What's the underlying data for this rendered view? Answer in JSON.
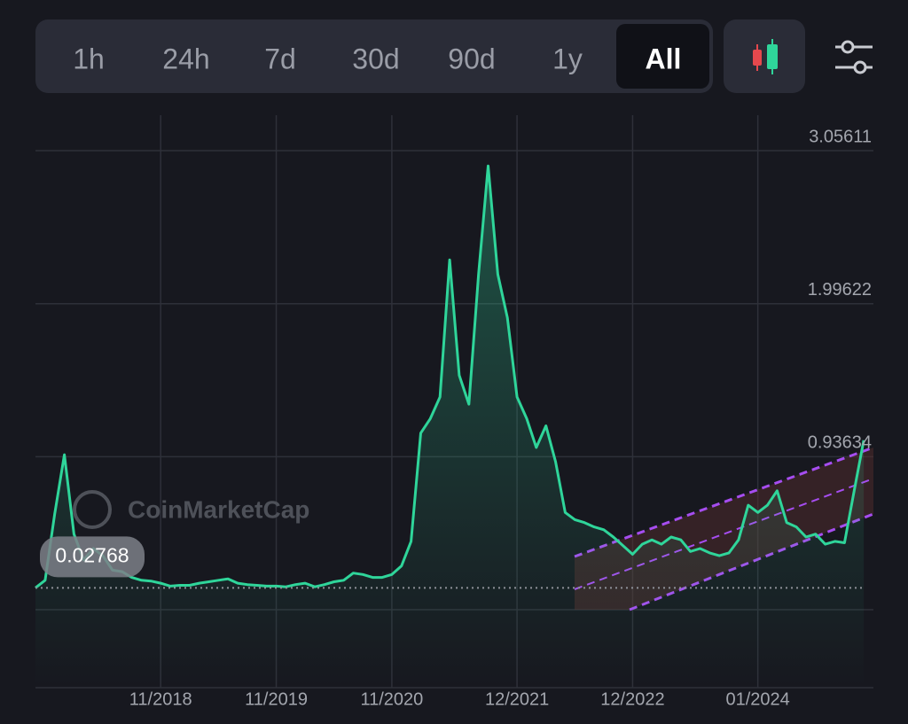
{
  "toolbar": {
    "ranges": [
      "1h",
      "24h",
      "7d",
      "30d",
      "90d",
      "1y",
      "All"
    ],
    "active": 6
  },
  "chart_data": {
    "type": "area-line",
    "watermark": "CoinMarketCap",
    "color": "#2fd59a",
    "x": [
      "2017-10",
      "2017-11",
      "2017-12",
      "2018-01",
      "2018-02",
      "2018-03",
      "2018-04",
      "2018-05",
      "2018-06",
      "2018-07",
      "2018-08",
      "2018-09",
      "2018-10",
      "2018-11",
      "2018-12",
      "2019-01",
      "2019-02",
      "2019-03",
      "2019-04",
      "2019-05",
      "2019-06",
      "2019-07",
      "2019-08",
      "2019-09",
      "2019-10",
      "2019-11",
      "2019-12",
      "2020-01",
      "2020-02",
      "2020-03",
      "2020-04",
      "2020-05",
      "2020-06",
      "2020-07",
      "2020-08",
      "2020-09",
      "2020-10",
      "2020-11",
      "2020-12",
      "2021-01",
      "2021-02",
      "2021-03",
      "2021-04",
      "2021-05",
      "2021-06",
      "2021-07",
      "2021-08",
      "2021-09",
      "2021-10",
      "2021-11",
      "2021-12",
      "2022-01",
      "2022-02",
      "2022-03",
      "2022-04",
      "2022-05",
      "2022-06",
      "2022-07",
      "2022-08",
      "2022-09",
      "2022-10",
      "2022-11",
      "2022-12",
      "2023-01",
      "2023-02",
      "2023-03",
      "2023-04",
      "2023-05",
      "2023-06",
      "2023-07",
      "2023-08",
      "2023-09",
      "2023-10",
      "2023-11",
      "2023-12",
      "2024-01",
      "2024-02",
      "2024-03",
      "2024-04",
      "2024-05",
      "2024-06",
      "2024-07",
      "2024-08",
      "2024-09",
      "2024-10",
      "2024-11",
      "2024-12"
    ],
    "values": [
      0.028,
      0.08,
      0.54,
      0.95,
      0.4,
      0.22,
      0.3,
      0.25,
      0.15,
      0.14,
      0.1,
      0.08,
      0.075,
      0.06,
      0.04,
      0.045,
      0.045,
      0.06,
      0.07,
      0.08,
      0.09,
      0.06,
      0.05,
      0.045,
      0.04,
      0.04,
      0.035,
      0.05,
      0.06,
      0.035,
      0.05,
      0.07,
      0.08,
      0.13,
      0.12,
      0.1,
      0.1,
      0.12,
      0.18,
      0.35,
      1.1,
      1.2,
      1.35,
      2.3,
      1.5,
      1.3,
      2.2,
      2.95,
      2.2,
      1.9,
      1.35,
      1.2,
      1.0,
      1.15,
      0.9,
      0.55,
      0.5,
      0.48,
      0.45,
      0.43,
      0.38,
      0.32,
      0.26,
      0.33,
      0.36,
      0.33,
      0.38,
      0.36,
      0.28,
      0.3,
      0.27,
      0.25,
      0.27,
      0.36,
      0.6,
      0.55,
      0.6,
      0.7,
      0.48,
      0.45,
      0.38,
      0.4,
      0.33,
      0.35,
      0.34,
      0.7,
      1.05
    ],
    "xlim": [
      "2017-10",
      "2025-01"
    ],
    "xticks": [
      {
        "value": "2018-11",
        "label": "11/2018"
      },
      {
        "value": "2019-11",
        "label": "11/2019"
      },
      {
        "value": "2020-11",
        "label": "11/2020"
      },
      {
        "value": "2021-12",
        "label": "12/2021"
      },
      {
        "value": "2022-12",
        "label": "12/2022"
      },
      {
        "value": "2024-01",
        "label": "01/2024"
      }
    ],
    "ylim": [
      -0.12355,
      3.30192
    ],
    "yticks": [
      3.05611,
      1.99622,
      0.93634
    ],
    "grid": true,
    "reference_line": 0.02768
  }
}
